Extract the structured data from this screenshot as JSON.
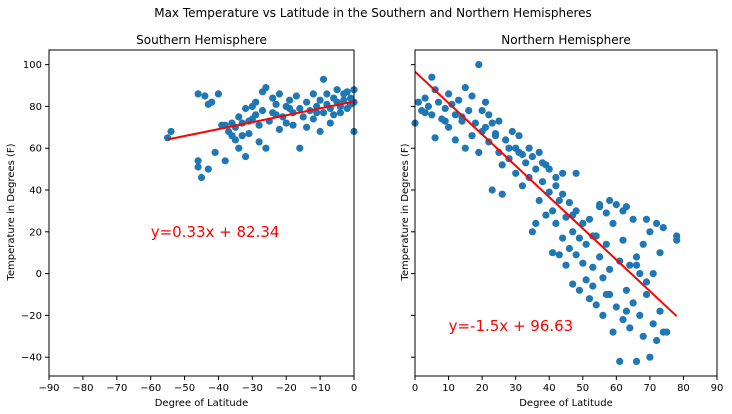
{
  "figure": {
    "title": "Max Temperature vs Latitude in the Southern and Northern Hemispheres",
    "point_color": "#1f77b4",
    "line_color": "#ff0000",
    "annotation_color": "#ff0000"
  },
  "chart_data": [
    {
      "type": "scatter",
      "title": "Southern Hemisphere",
      "xlabel": "Degree of Latitude",
      "ylabel": "Temperature in Degrees (F)",
      "xlim": [
        -90,
        0
      ],
      "ylim": [
        -49,
        107
      ],
      "xticks": [
        -90,
        -80,
        -70,
        -60,
        -50,
        -40,
        -30,
        -20,
        -10,
        0
      ],
      "xtick_labels": [
        "−90",
        "−80",
        "−70",
        "−60",
        "−50",
        "−40",
        "−30",
        "−20",
        "−10",
        "0"
      ],
      "yticks": [
        -40,
        -20,
        0,
        20,
        40,
        60,
        80,
        100
      ],
      "ytick_labels": [
        "−40",
        "−20",
        "0",
        "20",
        "40",
        "60",
        "80",
        "100"
      ],
      "grid": false,
      "annotation": {
        "text": "y=0.33x + 82.34",
        "x": -60,
        "y": 20
      },
      "regression": {
        "slope": 0.33,
        "intercept": 82.34,
        "x_range": [
          -55,
          0
        ]
      },
      "points": [
        [
          -55,
          65
        ],
        [
          -54,
          68
        ],
        [
          -46,
          54
        ],
        [
          -46,
          51
        ],
        [
          -45,
          46
        ],
        [
          -46,
          86
        ],
        [
          -44,
          85
        ],
        [
          -43,
          50
        ],
        [
          -43,
          81
        ],
        [
          -42,
          82
        ],
        [
          -41,
          58
        ],
        [
          -40,
          86
        ],
        [
          -39,
          71
        ],
        [
          -38,
          54
        ],
        [
          -38,
          71
        ],
        [
          -37,
          68
        ],
        [
          -36,
          72
        ],
        [
          -35,
          70
        ],
        [
          -35,
          64
        ],
        [
          -34,
          75
        ],
        [
          -34,
          60
        ],
        [
          -33,
          72
        ],
        [
          -33,
          66
        ],
        [
          -32,
          79
        ],
        [
          -32,
          56
        ],
        [
          -31,
          73
        ],
        [
          -31,
          67
        ],
        [
          -30,
          80
        ],
        [
          -30,
          74
        ],
        [
          -29,
          76
        ],
        [
          -28,
          71
        ],
        [
          -28,
          63
        ],
        [
          -27,
          87
        ],
        [
          -27,
          78
        ],
        [
          -26,
          60
        ],
        [
          -26,
          89
        ],
        [
          -25,
          73
        ],
        [
          -24,
          84
        ],
        [
          -24,
          77
        ],
        [
          -23,
          81
        ],
        [
          -22,
          69
        ],
        [
          -22,
          86
        ],
        [
          -21,
          75
        ],
        [
          -20,
          80
        ],
        [
          -20,
          72
        ],
        [
          -19,
          83
        ],
        [
          -18,
          77
        ],
        [
          -18,
          71
        ],
        [
          -17,
          85
        ],
        [
          -16,
          60
        ],
        [
          -16,
          79
        ],
        [
          -15,
          75
        ],
        [
          -14,
          82
        ],
        [
          -14,
          70
        ],
        [
          -13,
          78
        ],
        [
          -12,
          86
        ],
        [
          -12,
          74
        ],
        [
          -11,
          80
        ],
        [
          -10,
          83
        ],
        [
          -10,
          68
        ],
        [
          -9,
          93
        ],
        [
          -9,
          77
        ],
        [
          -8,
          81
        ],
        [
          -8,
          86
        ],
        [
          -7,
          79
        ],
        [
          -7,
          72
        ],
        [
          -6,
          84
        ],
        [
          -6,
          76
        ],
        [
          -5,
          82
        ],
        [
          -5,
          88
        ],
        [
          -4,
          80
        ],
        [
          -4,
          77
        ],
        [
          -3,
          86
        ],
        [
          -3,
          83
        ],
        [
          -2,
          79
        ],
        [
          -2,
          87
        ],
        [
          -1,
          81
        ],
        [
          -1,
          84
        ],
        [
          0,
          82
        ],
        [
          0,
          68
        ],
        [
          0,
          88
        ],
        [
          -11,
          77
        ],
        [
          -19,
          79
        ],
        [
          -23,
          76
        ],
        [
          -29,
          82
        ],
        [
          -36,
          66
        ]
      ]
    },
    {
      "type": "scatter",
      "title": "Northern Hemisphere",
      "xlabel": "Degree of Latitude",
      "ylabel": "Temperature in Degrees (F)",
      "xlim": [
        0,
        90
      ],
      "ylim": [
        -49,
        107
      ],
      "xticks": [
        0,
        10,
        20,
        30,
        40,
        50,
        60,
        70,
        80,
        90
      ],
      "xtick_labels": [
        "0",
        "10",
        "20",
        "30",
        "40",
        "50",
        "60",
        "70",
        "80",
        "90"
      ],
      "yticks": [
        -40,
        -20,
        0,
        20,
        40,
        60,
        80,
        100
      ],
      "ytick_labels": [
        "−40",
        "−20",
        "0",
        "20",
        "40",
        "60",
        "80",
        "100"
      ],
      "grid": false,
      "annotation": {
        "text": "y=-1.5x + 96.63",
        "x": 10,
        "y": -25
      },
      "regression": {
        "slope": -1.5,
        "intercept": 96.63,
        "x_range": [
          0,
          78
        ]
      },
      "points": [
        [
          0,
          72
        ],
        [
          1,
          82
        ],
        [
          2,
          78
        ],
        [
          3,
          84
        ],
        [
          4,
          80
        ],
        [
          5,
          94
        ],
        [
          5,
          76
        ],
        [
          6,
          65
        ],
        [
          6,
          88
        ],
        [
          7,
          82
        ],
        [
          8,
          74
        ],
        [
          9,
          79
        ],
        [
          10,
          86
        ],
        [
          10,
          70
        ],
        [
          11,
          81
        ],
        [
          12,
          76
        ],
        [
          12,
          64
        ],
        [
          13,
          83
        ],
        [
          14,
          73
        ],
        [
          15,
          89
        ],
        [
          15,
          60
        ],
        [
          16,
          78
        ],
        [
          17,
          85
        ],
        [
          17,
          66
        ],
        [
          18,
          72
        ],
        [
          19,
          100
        ],
        [
          19,
          58
        ],
        [
          20,
          78
        ],
        [
          21,
          70
        ],
        [
          22,
          76
        ],
        [
          22,
          63
        ],
        [
          23,
          72
        ],
        [
          23,
          40
        ],
        [
          24,
          67
        ],
        [
          25,
          58
        ],
        [
          25,
          73
        ],
        [
          26,
          38
        ],
        [
          27,
          64
        ],
        [
          28,
          55
        ],
        [
          29,
          68
        ],
        [
          30,
          60
        ],
        [
          30,
          48
        ],
        [
          31,
          66
        ],
        [
          32,
          57
        ],
        [
          32,
          42
        ],
        [
          33,
          53
        ],
        [
          34,
          60
        ],
        [
          34,
          46
        ],
        [
          35,
          20
        ],
        [
          35,
          56
        ],
        [
          36,
          50
        ],
        [
          37,
          35
        ],
        [
          37,
          58
        ],
        [
          38,
          44
        ],
        [
          39,
          52
        ],
        [
          39,
          28
        ],
        [
          40,
          39
        ],
        [
          40,
          50
        ],
        [
          41,
          30
        ],
        [
          41,
          10
        ],
        [
          42,
          24
        ],
        [
          42,
          46
        ],
        [
          43,
          35
        ],
        [
          43,
          9
        ],
        [
          44,
          48
        ],
        [
          44,
          17
        ],
        [
          45,
          27
        ],
        [
          45,
          4
        ],
        [
          46,
          12
        ],
        [
          46,
          34
        ],
        [
          47,
          -5
        ],
        [
          47,
          20
        ],
        [
          48,
          9
        ],
        [
          48,
          30
        ],
        [
          49,
          -8
        ],
        [
          49,
          17
        ],
        [
          50,
          5
        ],
        [
          50,
          24
        ],
        [
          51,
          -3
        ],
        [
          51,
          14
        ],
        [
          52,
          -12
        ],
        [
          52,
          26
        ],
        [
          53,
          3
        ],
        [
          53,
          -6
        ],
        [
          54,
          18
        ],
        [
          54,
          -15
        ],
        [
          55,
          8
        ],
        [
          55,
          33
        ],
        [
          56,
          -20
        ],
        [
          56,
          -2
        ],
        [
          57,
          14
        ],
        [
          57,
          29
        ],
        [
          58,
          -10
        ],
        [
          58,
          2
        ],
        [
          59,
          24
        ],
        [
          59,
          -28
        ],
        [
          60,
          -16
        ],
        [
          60,
          33
        ],
        [
          61,
          -42
        ],
        [
          61,
          6
        ],
        [
          62,
          -22
        ],
        [
          62,
          16
        ],
        [
          63,
          32
        ],
        [
          63,
          -8
        ],
        [
          64,
          -26
        ],
        [
          64,
          4
        ],
        [
          65,
          26
        ],
        [
          65,
          -14
        ],
        [
          66,
          -42
        ],
        [
          66,
          8
        ],
        [
          67,
          -20
        ],
        [
          67,
          0
        ],
        [
          68,
          14
        ],
        [
          68,
          -30
        ],
        [
          69,
          -10
        ],
        [
          69,
          26
        ],
        [
          70,
          -40
        ],
        [
          70,
          20
        ],
        [
          71,
          -24
        ],
        [
          71,
          0
        ],
        [
          72,
          24
        ],
        [
          72,
          -32
        ],
        [
          73,
          -18
        ],
        [
          73,
          10
        ],
        [
          74,
          -28
        ],
        [
          74,
          22
        ],
        [
          78,
          18
        ],
        [
          78,
          16
        ],
        [
          55,
          32
        ],
        [
          58,
          35
        ],
        [
          62,
          30
        ],
        [
          48,
          48
        ],
        [
          44,
          38
        ],
        [
          36,
          24
        ],
        [
          28,
          60
        ],
        [
          26,
          52
        ],
        [
          20,
          68
        ],
        [
          14,
          75
        ],
        [
          9,
          73
        ],
        [
          3,
          77
        ],
        [
          21,
          82
        ],
        [
          24,
          66
        ],
        [
          31,
          58
        ],
        [
          38,
          53
        ],
        [
          42,
          42
        ],
        [
          47,
          28
        ],
        [
          53,
          18
        ],
        [
          57,
          -10
        ],
        [
          63,
          -18
        ],
        [
          66,
          4
        ],
        [
          69,
          -4
        ],
        [
          75,
          -28
        ]
      ]
    }
  ]
}
